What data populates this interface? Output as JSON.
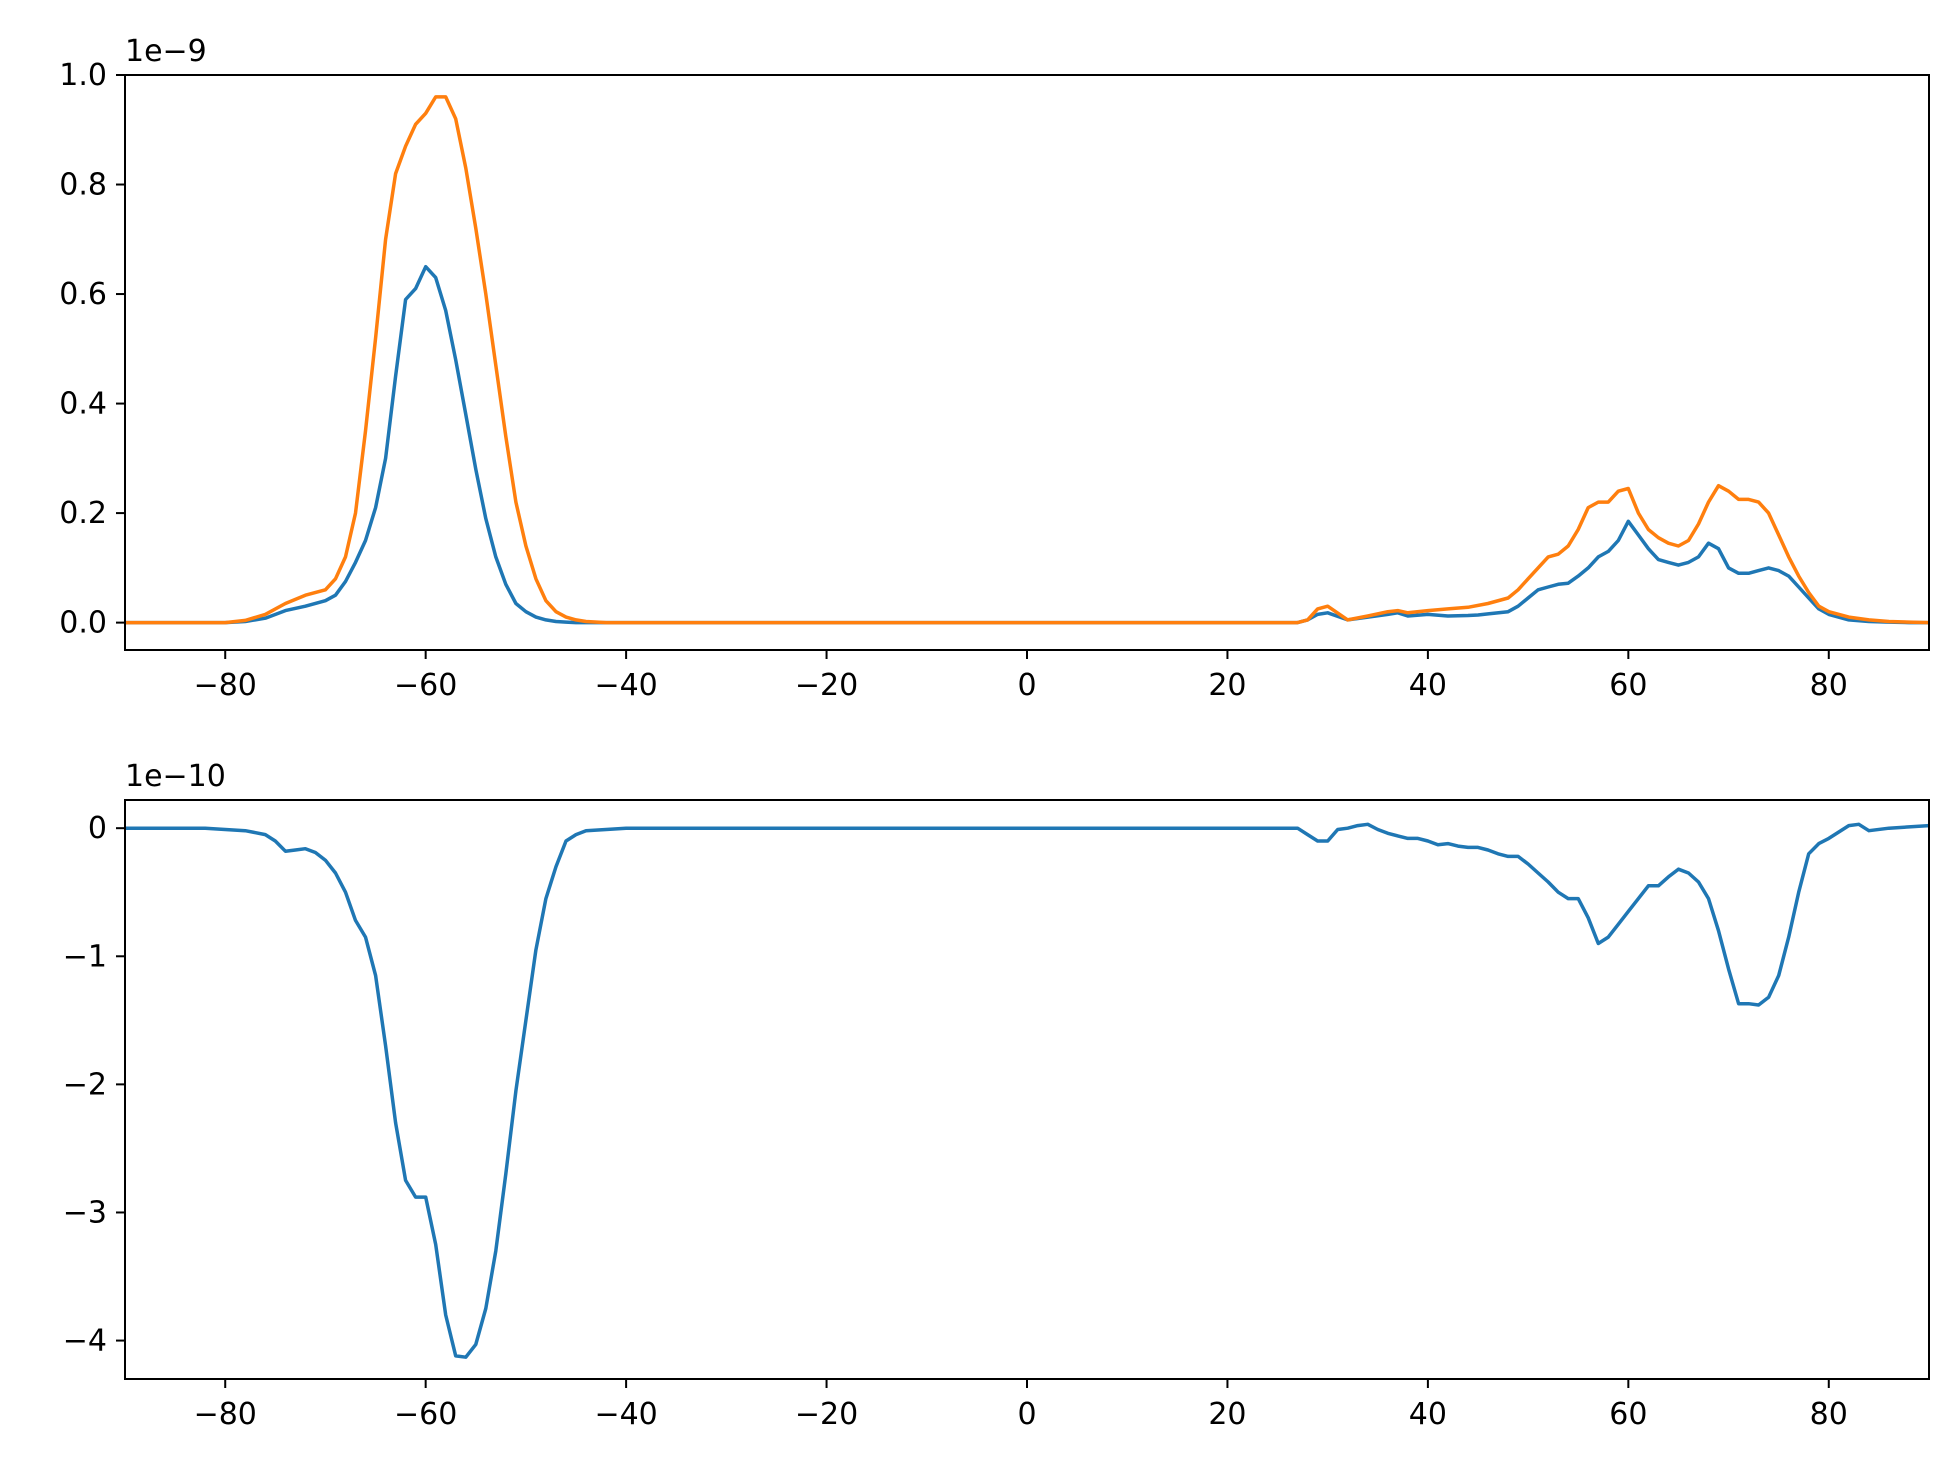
{
  "chart_data": [
    {
      "type": "line",
      "title": "",
      "xlabel": "",
      "ylabel": "",
      "xlim": [
        -90,
        90
      ],
      "ylim": [
        -0.05,
        1.0
      ],
      "y_offset_label": "1e−9",
      "x_ticks": [
        -80,
        -60,
        -40,
        -20,
        0,
        20,
        40,
        60,
        80
      ],
      "x_tick_labels": [
        "−80",
        "−60",
        "−40",
        "−20",
        "0",
        "20",
        "40",
        "60",
        "80"
      ],
      "y_ticks": [
        0.0,
        0.2,
        0.4,
        0.6,
        0.8,
        1.0
      ],
      "y_tick_labels": [
        "0.0",
        "0.2",
        "0.4",
        "0.6",
        "0.8",
        "1.0"
      ],
      "grid": false,
      "legend": "none",
      "series": [
        {
          "color": "#1f77b4",
          "x": [
            -90,
            -80,
            -78,
            -76,
            -74,
            -72,
            -70,
            -69,
            -68,
            -67,
            -66,
            -65,
            -64,
            -63,
            -62,
            -61,
            -60,
            -59,
            -58,
            -57,
            -56,
            -55,
            -54,
            -53,
            -52,
            -51,
            -50,
            -49,
            -48,
            -47,
            -46,
            -45,
            -44,
            -42,
            -40,
            0,
            27,
            28,
            29,
            30,
            32,
            34,
            36,
            37,
            38,
            40,
            42,
            44,
            45,
            46,
            48,
            49,
            50,
            51,
            52,
            53,
            54,
            55,
            56,
            57,
            58,
            59,
            60,
            61,
            62,
            63,
            64,
            65,
            66,
            67,
            68,
            69,
            70,
            71,
            72,
            73,
            74,
            75,
            76,
            77,
            78,
            79,
            80,
            82,
            84,
            86,
            88,
            90
          ],
          "y": [
            0.0,
            0.0,
            0.002,
            0.008,
            0.022,
            0.03,
            0.04,
            0.05,
            0.075,
            0.11,
            0.15,
            0.21,
            0.3,
            0.45,
            0.59,
            0.61,
            0.65,
            0.63,
            0.57,
            0.48,
            0.38,
            0.28,
            0.19,
            0.12,
            0.07,
            0.035,
            0.02,
            0.01,
            0.005,
            0.002,
            0.001,
            0.0,
            0.0,
            0.0,
            0.0,
            0.0,
            0.0,
            0.005,
            0.015,
            0.018,
            0.005,
            0.01,
            0.015,
            0.018,
            0.012,
            0.015,
            0.012,
            0.013,
            0.014,
            0.016,
            0.02,
            0.03,
            0.045,
            0.06,
            0.065,
            0.07,
            0.072,
            0.085,
            0.1,
            0.12,
            0.13,
            0.15,
            0.185,
            0.16,
            0.135,
            0.115,
            0.11,
            0.105,
            0.11,
            0.12,
            0.145,
            0.135,
            0.1,
            0.09,
            0.09,
            0.095,
            0.1,
            0.095,
            0.085,
            0.065,
            0.045,
            0.025,
            0.015,
            0.005,
            0.002,
            0.001,
            0.0,
            0.0
          ]
        },
        {
          "color": "#ff7f0e",
          "x": [
            -90,
            -80,
            -78,
            -76,
            -74,
            -72,
            -70,
            -69,
            -68,
            -67,
            -66,
            -65,
            -64,
            -63,
            -62,
            -61,
            -60,
            -59,
            -58,
            -57,
            -56,
            -55,
            -54,
            -53,
            -52,
            -51,
            -50,
            -49,
            -48,
            -47,
            -46,
            -45,
            -44,
            -42,
            -40,
            0,
            27,
            28,
            29,
            30,
            32,
            34,
            36,
            37,
            38,
            40,
            42,
            44,
            46,
            48,
            49,
            50,
            51,
            52,
            53,
            54,
            55,
            56,
            57,
            58,
            59,
            60,
            61,
            62,
            63,
            64,
            65,
            66,
            67,
            68,
            69,
            70,
            71,
            72,
            73,
            74,
            75,
            76,
            77,
            78,
            79,
            80,
            82,
            84,
            86,
            88,
            90
          ],
          "y": [
            0.0,
            0.0,
            0.004,
            0.015,
            0.035,
            0.05,
            0.06,
            0.08,
            0.12,
            0.2,
            0.35,
            0.52,
            0.7,
            0.82,
            0.87,
            0.91,
            0.93,
            0.96,
            0.96,
            0.92,
            0.83,
            0.72,
            0.6,
            0.47,
            0.34,
            0.22,
            0.14,
            0.08,
            0.04,
            0.02,
            0.01,
            0.005,
            0.002,
            0.0,
            0.0,
            0.0,
            0.0,
            0.005,
            0.025,
            0.03,
            0.005,
            0.012,
            0.02,
            0.022,
            0.018,
            0.022,
            0.025,
            0.028,
            0.035,
            0.045,
            0.06,
            0.08,
            0.1,
            0.12,
            0.125,
            0.14,
            0.17,
            0.21,
            0.22,
            0.22,
            0.24,
            0.245,
            0.2,
            0.17,
            0.155,
            0.145,
            0.14,
            0.15,
            0.18,
            0.22,
            0.25,
            0.24,
            0.225,
            0.225,
            0.22,
            0.2,
            0.16,
            0.12,
            0.085,
            0.055,
            0.03,
            0.02,
            0.01,
            0.005,
            0.002,
            0.001,
            0.0
          ]
        }
      ]
    },
    {
      "type": "line",
      "title": "",
      "xlabel": "",
      "ylabel": "",
      "xlim": [
        -90,
        90
      ],
      "ylim": [
        -4.3,
        0.22
      ],
      "y_offset_label": "1e−10",
      "x_ticks": [
        -80,
        -60,
        -40,
        -20,
        0,
        20,
        40,
        60,
        80
      ],
      "x_tick_labels": [
        "−80",
        "−60",
        "−40",
        "−20",
        "0",
        "20",
        "40",
        "60",
        "80"
      ],
      "y_ticks": [
        0,
        -1,
        -2,
        -3,
        -4
      ],
      "y_tick_labels": [
        "0",
        "−1",
        "−2",
        "−3",
        "−4"
      ],
      "grid": false,
      "legend": "none",
      "series": [
        {
          "color": "#1f77b4",
          "x": [
            -90,
            -82,
            -80,
            -78,
            -76,
            -75,
            -74,
            -73,
            -72,
            -71,
            -70,
            -69,
            -68,
            -67,
            -66,
            -65,
            -64,
            -63,
            -62,
            -61,
            -60,
            -59,
            -58,
            -57,
            -56,
            -55,
            -54,
            -53,
            -52,
            -51,
            -50,
            -49,
            -48,
            -47,
            -46,
            -45,
            -44,
            -42,
            -40,
            0,
            27,
            28,
            29,
            30,
            31,
            32,
            33,
            34,
            35,
            36,
            37,
            38,
            39,
            40,
            41,
            42,
            43,
            44,
            45,
            46,
            47,
            48,
            49,
            50,
            51,
            52,
            53,
            54,
            55,
            56,
            57,
            58,
            59,
            60,
            61,
            62,
            63,
            64,
            65,
            66,
            67,
            68,
            69,
            70,
            71,
            72,
            73,
            74,
            75,
            76,
            77,
            78,
            79,
            80,
            81,
            82,
            83,
            84,
            86,
            88,
            90
          ],
          "y": [
            0.0,
            0.0,
            -0.01,
            -0.02,
            -0.05,
            -0.1,
            -0.18,
            -0.17,
            -0.16,
            -0.19,
            -0.25,
            -0.35,
            -0.5,
            -0.72,
            -0.85,
            -1.15,
            -1.7,
            -2.3,
            -2.75,
            -2.88,
            -2.88,
            -3.25,
            -3.8,
            -4.12,
            -4.13,
            -4.03,
            -3.75,
            -3.3,
            -2.7,
            -2.05,
            -1.5,
            -0.95,
            -0.55,
            -0.3,
            -0.1,
            -0.05,
            -0.02,
            -0.01,
            0.0,
            0.0,
            0.0,
            -0.05,
            -0.1,
            -0.1,
            -0.01,
            0.0,
            0.02,
            0.03,
            -0.01,
            -0.04,
            -0.06,
            -0.08,
            -0.08,
            -0.1,
            -0.13,
            -0.12,
            -0.14,
            -0.15,
            -0.15,
            -0.17,
            -0.2,
            -0.22,
            -0.22,
            -0.28,
            -0.35,
            -0.42,
            -0.5,
            -0.55,
            -0.55,
            -0.7,
            -0.9,
            -0.85,
            -0.75,
            -0.65,
            -0.55,
            -0.45,
            -0.45,
            -0.38,
            -0.32,
            -0.35,
            -0.42,
            -0.55,
            -0.8,
            -1.1,
            -1.37,
            -1.37,
            -1.38,
            -1.32,
            -1.15,
            -0.85,
            -0.5,
            -0.2,
            -0.12,
            -0.08,
            -0.03,
            0.02,
            0.03,
            -0.02,
            0.0,
            0.01,
            0.02
          ]
        }
      ]
    }
  ]
}
